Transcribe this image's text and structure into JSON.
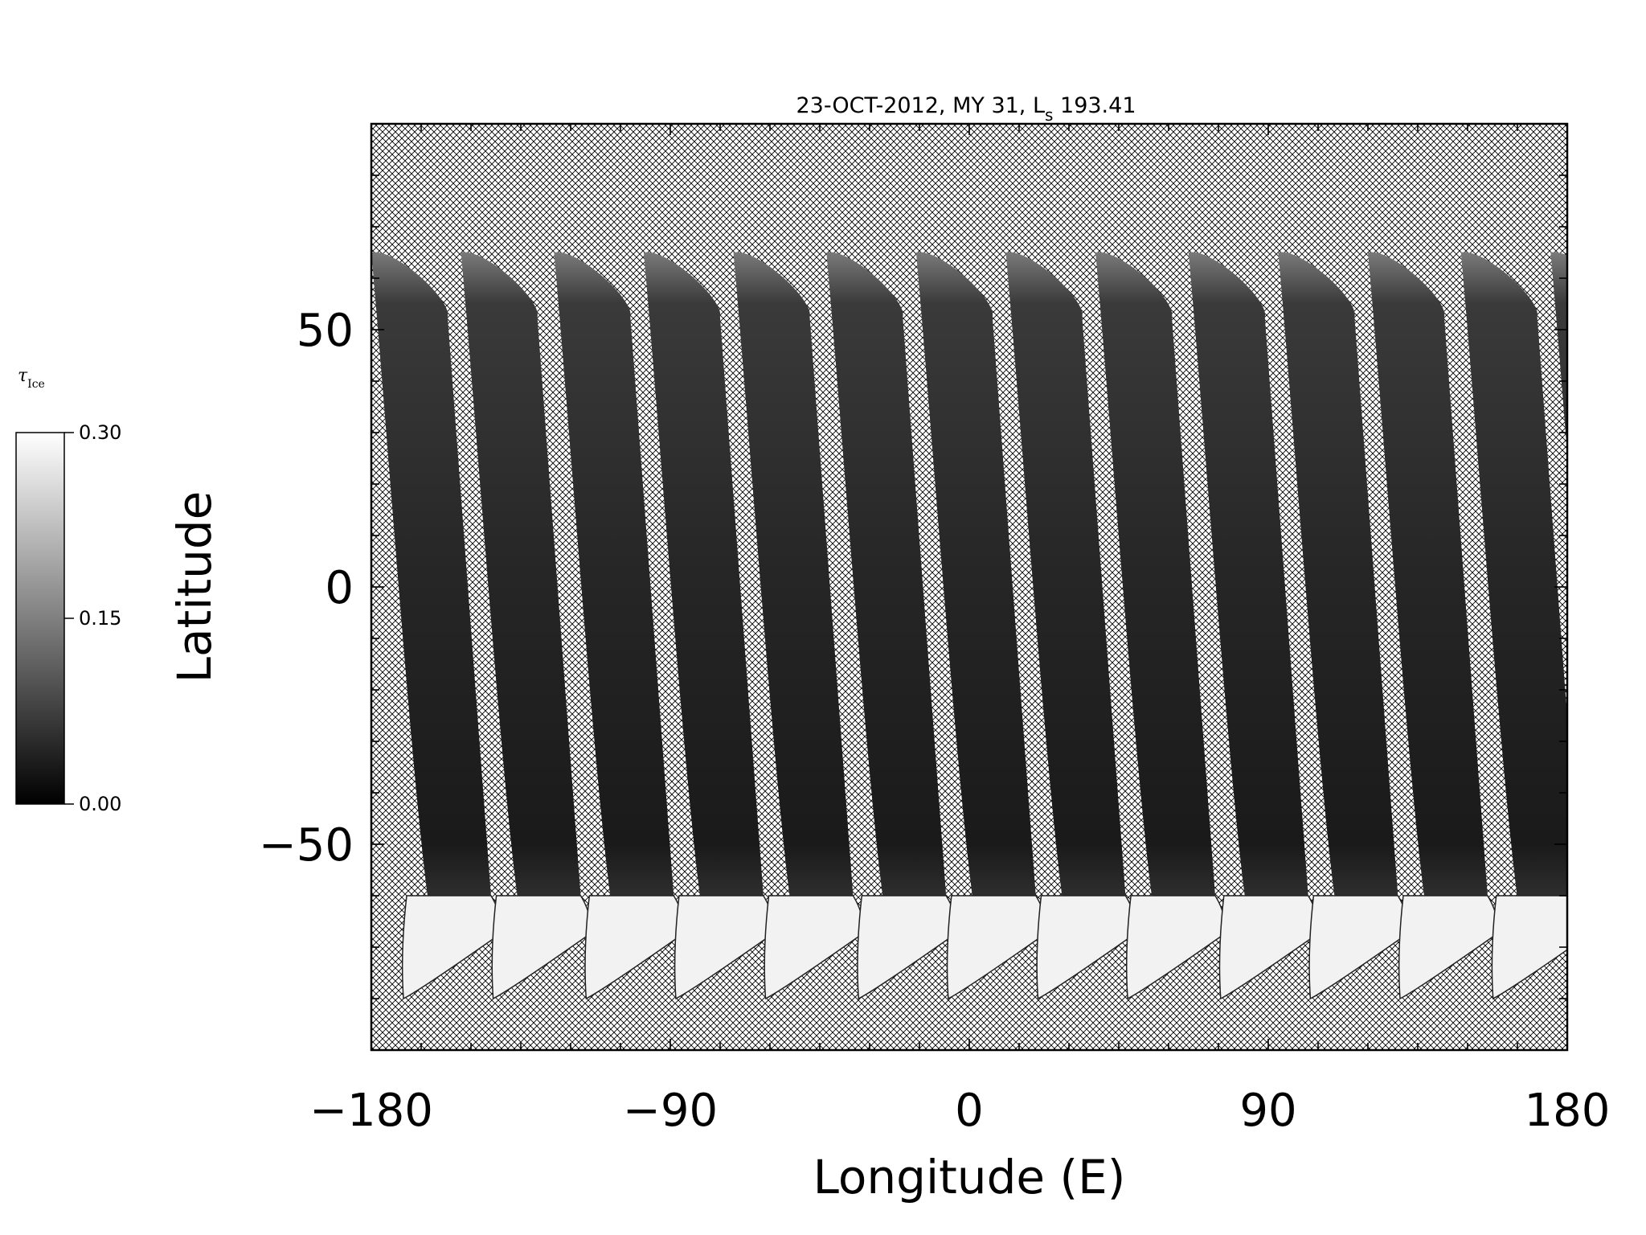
{
  "chart_data": {
    "type": "heatmap",
    "title_main": "23-OCT-2012, MY 31,  L",
    "title_sub": "s",
    "title_value": " 193.41",
    "xlabel": "Longitude (E)",
    "ylabel": "Latitude",
    "xlim": [
      -180,
      180
    ],
    "ylim": [
      -90,
      90
    ],
    "xticks": [
      -180,
      -90,
      0,
      90,
      180
    ],
    "xtick_labels": [
      "−180",
      "−90",
      "0",
      "90",
      "180"
    ],
    "yticks": [
      -50,
      0,
      50
    ],
    "ytick_labels": [
      "−50",
      "0",
      "50"
    ],
    "colorbar": {
      "symbol": "τ",
      "symbol_sub": "Ice",
      "range": [
        0.0,
        0.3
      ],
      "tick_values": [
        0.0,
        0.15,
        0.3
      ],
      "tick_labels": [
        "0.00",
        "0.15",
        "0.30"
      ],
      "colormap": "grayscale"
    },
    "swath_start_longitudes": [
      -180,
      -153,
      -125,
      -98,
      -71,
      -43,
      -16,
      11,
      38,
      66,
      93,
      120,
      148,
      175
    ],
    "swath_lat_range": [
      -80,
      65
    ],
    "polar_cap_boundary_lat": -60,
    "no_data_fill": "crosshatch"
  }
}
